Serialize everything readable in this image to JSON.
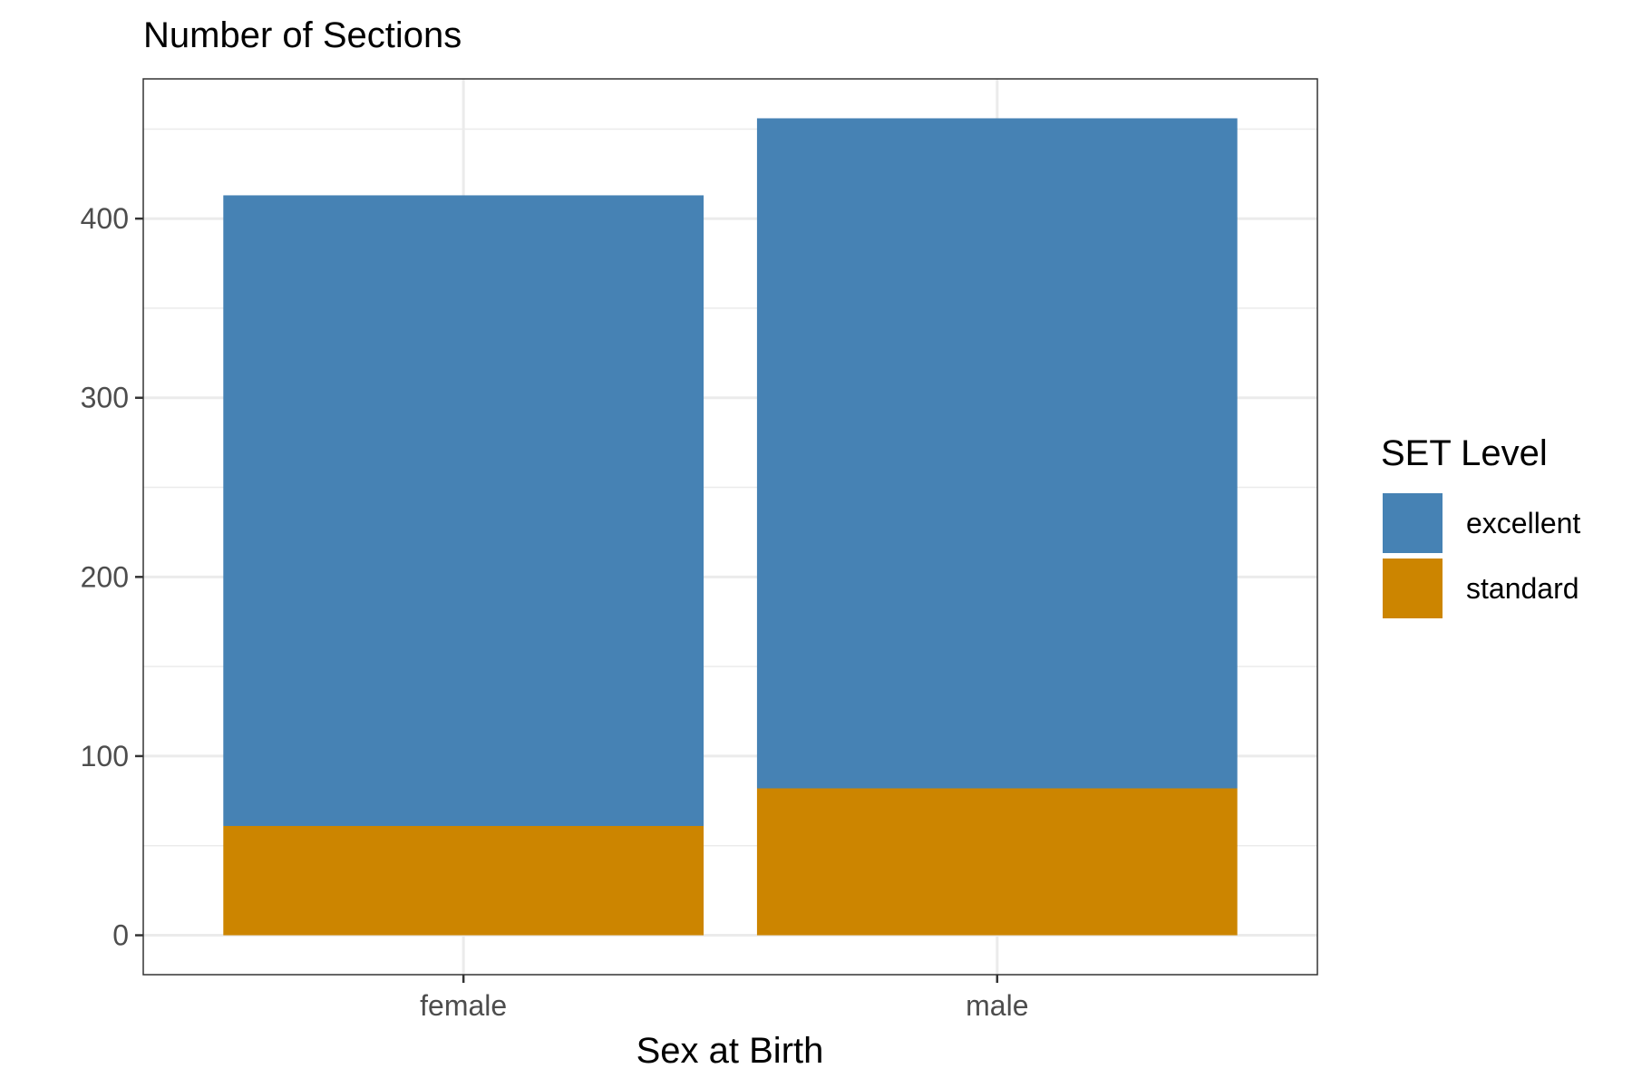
{
  "chart_data": {
    "type": "bar",
    "stacked": true,
    "title": "Number of Sections",
    "xlabel": "Sex at Birth",
    "ylabel": "",
    "categories": [
      "female",
      "male"
    ],
    "series": [
      {
        "name": "standard",
        "values": [
          61,
          82
        ],
        "color": "#CC8500"
      },
      {
        "name": "excellent",
        "values": [
          352,
          374
        ],
        "color": "#4682B4"
      }
    ],
    "ylim": [
      -22,
      478
    ],
    "yticks": [
      0,
      100,
      200,
      300,
      400
    ],
    "ytick_labels": [
      "0",
      "100",
      "200",
      "300",
      "400"
    ],
    "grid": true,
    "legend": {
      "title": "SET Level",
      "placement": "right",
      "entries": [
        {
          "label": "excellent",
          "color": "#4682B4"
        },
        {
          "label": "standard",
          "color": "#CC8500"
        }
      ]
    }
  }
}
